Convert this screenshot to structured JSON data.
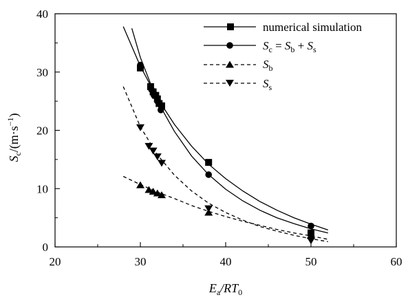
{
  "chart_data": {
    "type": "scatter",
    "xlabel": {
      "main": "E",
      "sub1": "a",
      "mid": "/RT",
      "sub2": "0"
    },
    "ylabel": {
      "main": "S",
      "sub": "c",
      "unit": "/(m·s",
      "exp": "−1",
      "close": ")"
    },
    "xlim": [
      20,
      60
    ],
    "ylim": [
      0,
      40
    ],
    "xticks": [
      20,
      30,
      40,
      50,
      60
    ],
    "yticks": [
      0,
      10,
      20,
      30,
      40
    ],
    "grid": false,
    "legend_position": "top-right",
    "legend": [
      {
        "label": "numerical simulation",
        "marker": "square",
        "line": "solid"
      },
      {
        "label_parts": [
          "S",
          "c",
          " = ",
          "S",
          "b",
          " + ",
          "S",
          "s"
        ],
        "marker": "circle",
        "line": "solid"
      },
      {
        "label_parts": [
          "S",
          "b"
        ],
        "marker": "triangle-up",
        "line": "dashed"
      },
      {
        "label_parts": [
          "S",
          "s"
        ],
        "marker": "triangle-down",
        "line": "dashed"
      }
    ],
    "series": [
      {
        "name": "numerical simulation",
        "marker": "square",
        "points": [
          [
            30.0,
            30.7
          ],
          [
            31.2,
            27.5
          ],
          [
            31.5,
            26.6
          ],
          [
            31.8,
            26.0
          ],
          [
            32.0,
            25.4
          ],
          [
            32.2,
            24.6
          ],
          [
            32.5,
            24.2
          ],
          [
            38.0,
            14.5
          ],
          [
            50.0,
            2.4
          ]
        ],
        "fit": [
          [
            28.0,
            37.8
          ],
          [
            30.0,
            31.0
          ],
          [
            32.0,
            25.5
          ],
          [
            34.0,
            21.0
          ],
          [
            36.0,
            17.3
          ],
          [
            38.0,
            14.2
          ],
          [
            40.0,
            11.7
          ],
          [
            42.0,
            9.6
          ],
          [
            44.0,
            7.8
          ],
          [
            46.0,
            6.3
          ],
          [
            48.0,
            5.0
          ],
          [
            50.0,
            3.9
          ],
          [
            52.0,
            2.9
          ]
        ]
      },
      {
        "name": "Sc = Sb + Ss",
        "marker": "circle",
        "points": [
          [
            30.0,
            31.2
          ],
          [
            31.3,
            27.0
          ],
          [
            31.6,
            26.0
          ],
          [
            32.0,
            25.0
          ],
          [
            32.4,
            23.5
          ],
          [
            38.0,
            12.4
          ],
          [
            50.0,
            3.6
          ]
        ],
        "fit": [
          [
            29.0,
            37.5
          ],
          [
            30.0,
            32.5
          ],
          [
            32.0,
            25.0
          ],
          [
            34.0,
            19.8
          ],
          [
            36.0,
            15.6
          ],
          [
            38.0,
            12.4
          ],
          [
            40.0,
            9.9
          ],
          [
            42.0,
            7.9
          ],
          [
            44.0,
            6.3
          ],
          [
            46.0,
            5.0
          ],
          [
            48.0,
            4.0
          ],
          [
            50.0,
            3.1
          ],
          [
            52.0,
            2.4
          ]
        ]
      },
      {
        "name": "Sb",
        "marker": "triangle-up",
        "points": [
          [
            30.0,
            10.6
          ],
          [
            31.0,
            9.8
          ],
          [
            31.5,
            9.5
          ],
          [
            32.0,
            9.2
          ],
          [
            32.5,
            8.9
          ],
          [
            38.0,
            5.9
          ],
          [
            50.0,
            1.9
          ]
        ],
        "fit": [
          [
            28.0,
            12.1
          ],
          [
            30.0,
            10.7
          ],
          [
            32.0,
            9.4
          ],
          [
            34.0,
            8.3
          ],
          [
            36.0,
            7.1
          ],
          [
            38.0,
            6.1
          ],
          [
            40.0,
            5.2
          ],
          [
            42.0,
            4.4
          ],
          [
            44.0,
            3.7
          ],
          [
            46.0,
            3.0
          ],
          [
            48.0,
            2.4
          ],
          [
            50.0,
            1.9
          ],
          [
            52.0,
            1.3
          ]
        ]
      },
      {
        "name": "Ss",
        "marker": "triangle-down",
        "points": [
          [
            30.0,
            20.5
          ],
          [
            31.0,
            17.3
          ],
          [
            31.5,
            16.5
          ],
          [
            32.0,
            15.5
          ],
          [
            32.5,
            14.4
          ],
          [
            38.0,
            6.6
          ],
          [
            50.0,
            1.1
          ]
        ],
        "fit": [
          [
            28.0,
            27.5
          ],
          [
            30.0,
            20.6
          ],
          [
            32.0,
            15.8
          ],
          [
            34.0,
            12.3
          ],
          [
            36.0,
            9.6
          ],
          [
            38.0,
            7.5
          ],
          [
            40.0,
            5.9
          ],
          [
            42.0,
            4.6
          ],
          [
            44.0,
            3.5
          ],
          [
            46.0,
            2.7
          ],
          [
            48.0,
            2.0
          ],
          [
            50.0,
            1.4
          ],
          [
            52.0,
            0.9
          ]
        ]
      }
    ]
  }
}
